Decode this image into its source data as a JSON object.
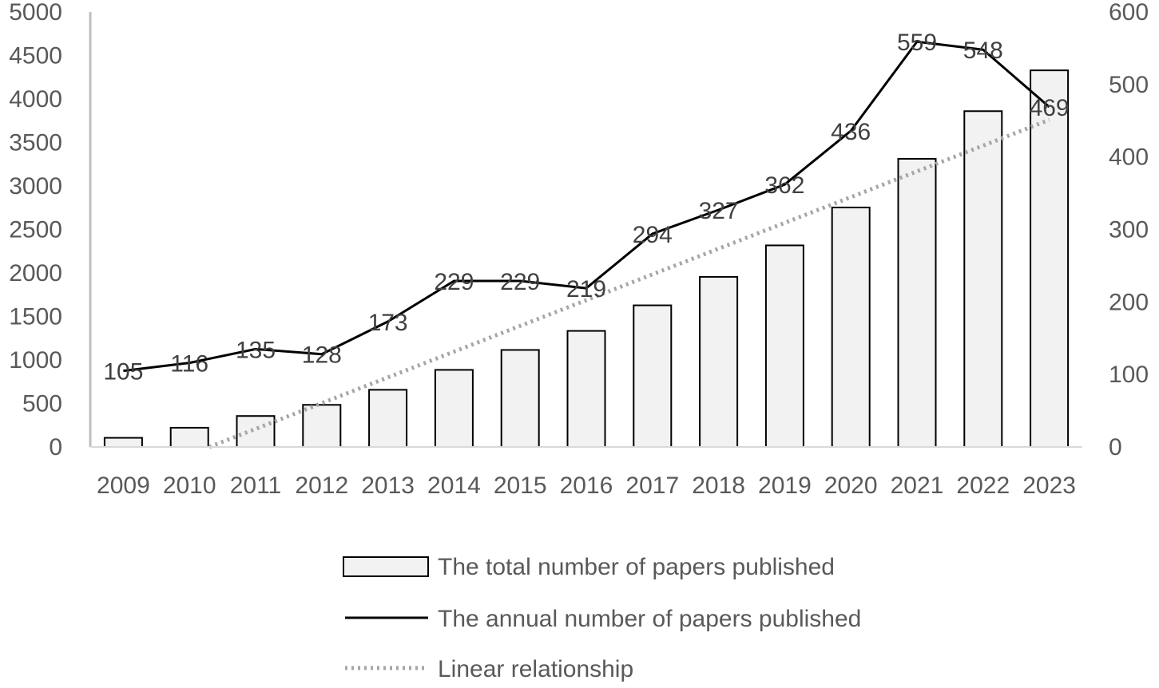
{
  "chart_data": {
    "type": "bar",
    "title": "",
    "xlabel": "",
    "ylabel": "",
    "y2label": "",
    "categories": [
      "2009",
      "2010",
      "2011",
      "2012",
      "2013",
      "2014",
      "2015",
      "2016",
      "2017",
      "2018",
      "2019",
      "2020",
      "2021",
      "2022",
      "2023"
    ],
    "ylim": [
      0,
      5000
    ],
    "y_ticks": [
      0,
      500,
      1000,
      1500,
      2000,
      2500,
      3000,
      3500,
      4000,
      4500,
      5000
    ],
    "y2lim": [
      0,
      600
    ],
    "y2_ticks": [
      0,
      100,
      200,
      300,
      400,
      500,
      600
    ],
    "grid": false,
    "legend_position": "bottom",
    "series": [
      {
        "name": "The total number of papers published",
        "type": "bar",
        "axis": "left",
        "values": [
          105,
          221,
          356,
          484,
          657,
          886,
          1115,
          1334,
          1628,
          1955,
          2317,
          2753,
          3312,
          3860,
          4329
        ],
        "color": "#f2f2f2",
        "stroke": "#000000"
      },
      {
        "name": "The annual number of papers published",
        "type": "line",
        "axis": "right",
        "values": [
          105,
          116,
          135,
          128,
          173,
          229,
          229,
          219,
          294,
          327,
          362,
          436,
          559,
          548,
          469
        ],
        "labels": [
          "105",
          "116",
          "135",
          "128",
          "173",
          "229",
          "229",
          "219",
          "294",
          "327",
          "362",
          "436",
          "559",
          "548",
          "469"
        ],
        "color": "#000000"
      },
      {
        "name": "Linear relationship",
        "type": "trendline",
        "axis": "left",
        "of_series": "The total number of papers published",
        "color": "#a6a6a6"
      }
    ]
  }
}
